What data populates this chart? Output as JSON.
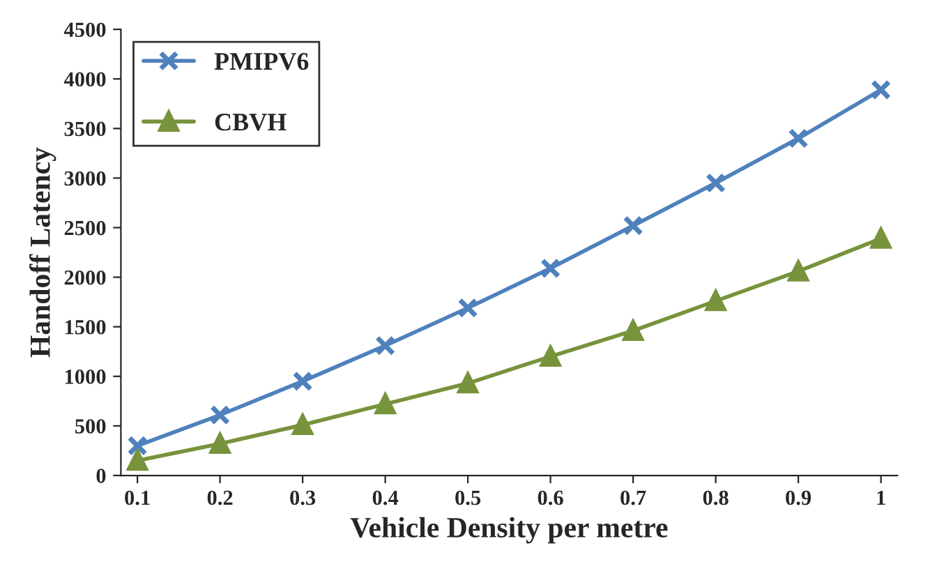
{
  "chart_data": {
    "type": "line",
    "xlabel": "Vehicle Density per metre",
    "ylabel": "Handoff Latency",
    "categories": [
      "0.1",
      "0.2",
      "0.3",
      "0.4",
      "0.5",
      "0.6",
      "0.7",
      "0.8",
      "0.9",
      "1"
    ],
    "series": [
      {
        "name": "PMIPV6",
        "color": "#4f81bd",
        "marker": "cross",
        "values": [
          300,
          610,
          950,
          1310,
          1690,
          2090,
          2520,
          2950,
          3400,
          3890
        ]
      },
      {
        "name": "CBVH",
        "color": "#77933c",
        "marker": "triangle",
        "values": [
          150,
          320,
          510,
          720,
          930,
          1200,
          1460,
          1760,
          2060,
          2390
        ]
      }
    ],
    "ylim": [
      0,
      4500
    ],
    "yticks": [
      0,
      500,
      1000,
      1500,
      2000,
      2500,
      3000,
      3500,
      4000,
      4500
    ],
    "grid": false,
    "legend": "top left",
    "line_style": "solid"
  }
}
